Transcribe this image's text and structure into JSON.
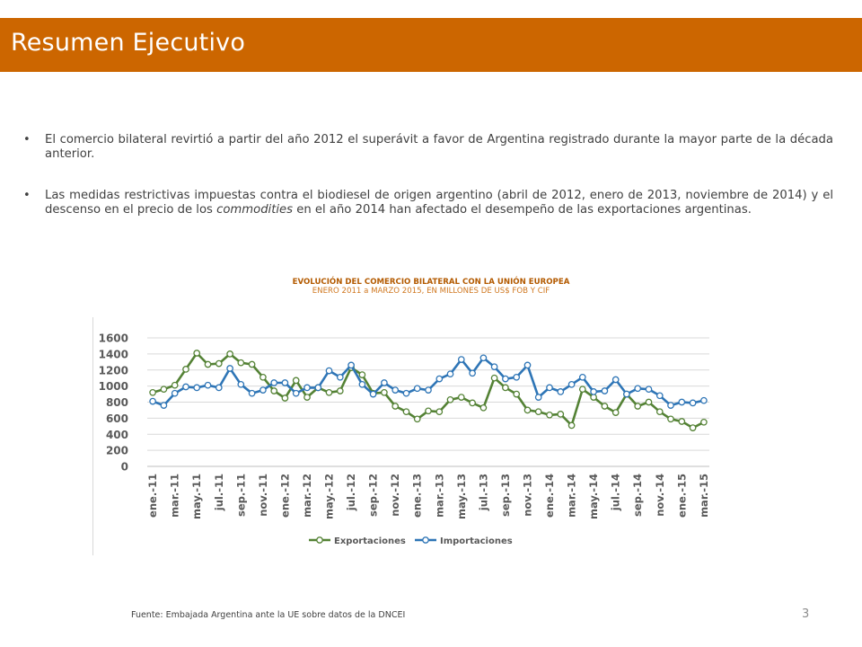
{
  "header": {
    "title": "Resumen Ejecutivo"
  },
  "bullets": [
    {
      "text": "El comercio bilateral revirtió a partir del año 2012 el superávit a favor de Argentina registrado durante la mayor parte de la década anterior."
    },
    {
      "text_before": "Las medidas restrictivas impuestas contra el biodiesel de origen argentino (abril de 2012, enero de 2013, noviembre de 2014) y el descenso en el precio de los ",
      "text_em": "commodities",
      "text_after": " en el año 2014 han afectado el desempeño de las exportaciones argentinas."
    }
  ],
  "chart_heading": {
    "line1": "EVOLUCIÓN DEL COMERCIO BILATERAL CON LA UNIÓN EUROPEA",
    "line2": "ENERO 2011 a MARZO 2015, EN MILLONES DE US$ FOB Y CIF"
  },
  "chart_data": {
    "type": "line",
    "ylim": [
      0,
      1600
    ],
    "yticks": [
      0,
      200,
      400,
      600,
      800,
      1000,
      1200,
      1400,
      1600
    ],
    "grid": true,
    "legend_position": "bottom",
    "tick_labels": [
      "ene.-11",
      "mar.-11",
      "may.-11",
      "jul.-11",
      "sep.-11",
      "nov.-11",
      "ene.-12",
      "mar.-12",
      "may.-12",
      "jul.-12",
      "sep.-12",
      "nov.-12",
      "ene.-13",
      "mar.-13",
      "may.-13",
      "jul.-13",
      "sep.-13",
      "nov.-13",
      "ene.-14",
      "mar.-14",
      "may.-14",
      "jul.-14",
      "sep.-14",
      "nov.-14",
      "ene.-15",
      "mar.-15"
    ],
    "series": [
      {
        "name": "Exportaciones",
        "color": "#548235",
        "values": [
          920,
          960,
          1010,
          1210,
          1410,
          1270,
          1280,
          1400,
          1290,
          1270,
          1110,
          940,
          850,
          1070,
          860,
          980,
          920,
          940,
          1230,
          1140,
          910,
          920,
          750,
          680,
          590,
          690,
          680,
          830,
          860,
          790,
          730,
          1100,
          980,
          900,
          700,
          680,
          640,
          650,
          510,
          960,
          860,
          750,
          670,
          900,
          750,
          800,
          680,
          590,
          560,
          480,
          550
        ]
      },
      {
        "name": "Importaciones",
        "color": "#2e75b6",
        "values": [
          810,
          760,
          910,
          990,
          980,
          1010,
          980,
          1220,
          1020,
          910,
          950,
          1040,
          1040,
          910,
          980,
          980,
          1190,
          1110,
          1260,
          1020,
          900,
          1040,
          950,
          910,
          970,
          950,
          1090,
          1150,
          1330,
          1160,
          1350,
          1240,
          1090,
          1110,
          1260,
          860,
          980,
          930,
          1020,
          1110,
          930,
          940,
          1080,
          900,
          970,
          960,
          880,
          760,
          800,
          790,
          820
        ]
      }
    ]
  },
  "footer": {
    "source": "Fuente: Embajada  Argentina ante la UE sobre datos de la DNCEI",
    "page_number": "3"
  }
}
